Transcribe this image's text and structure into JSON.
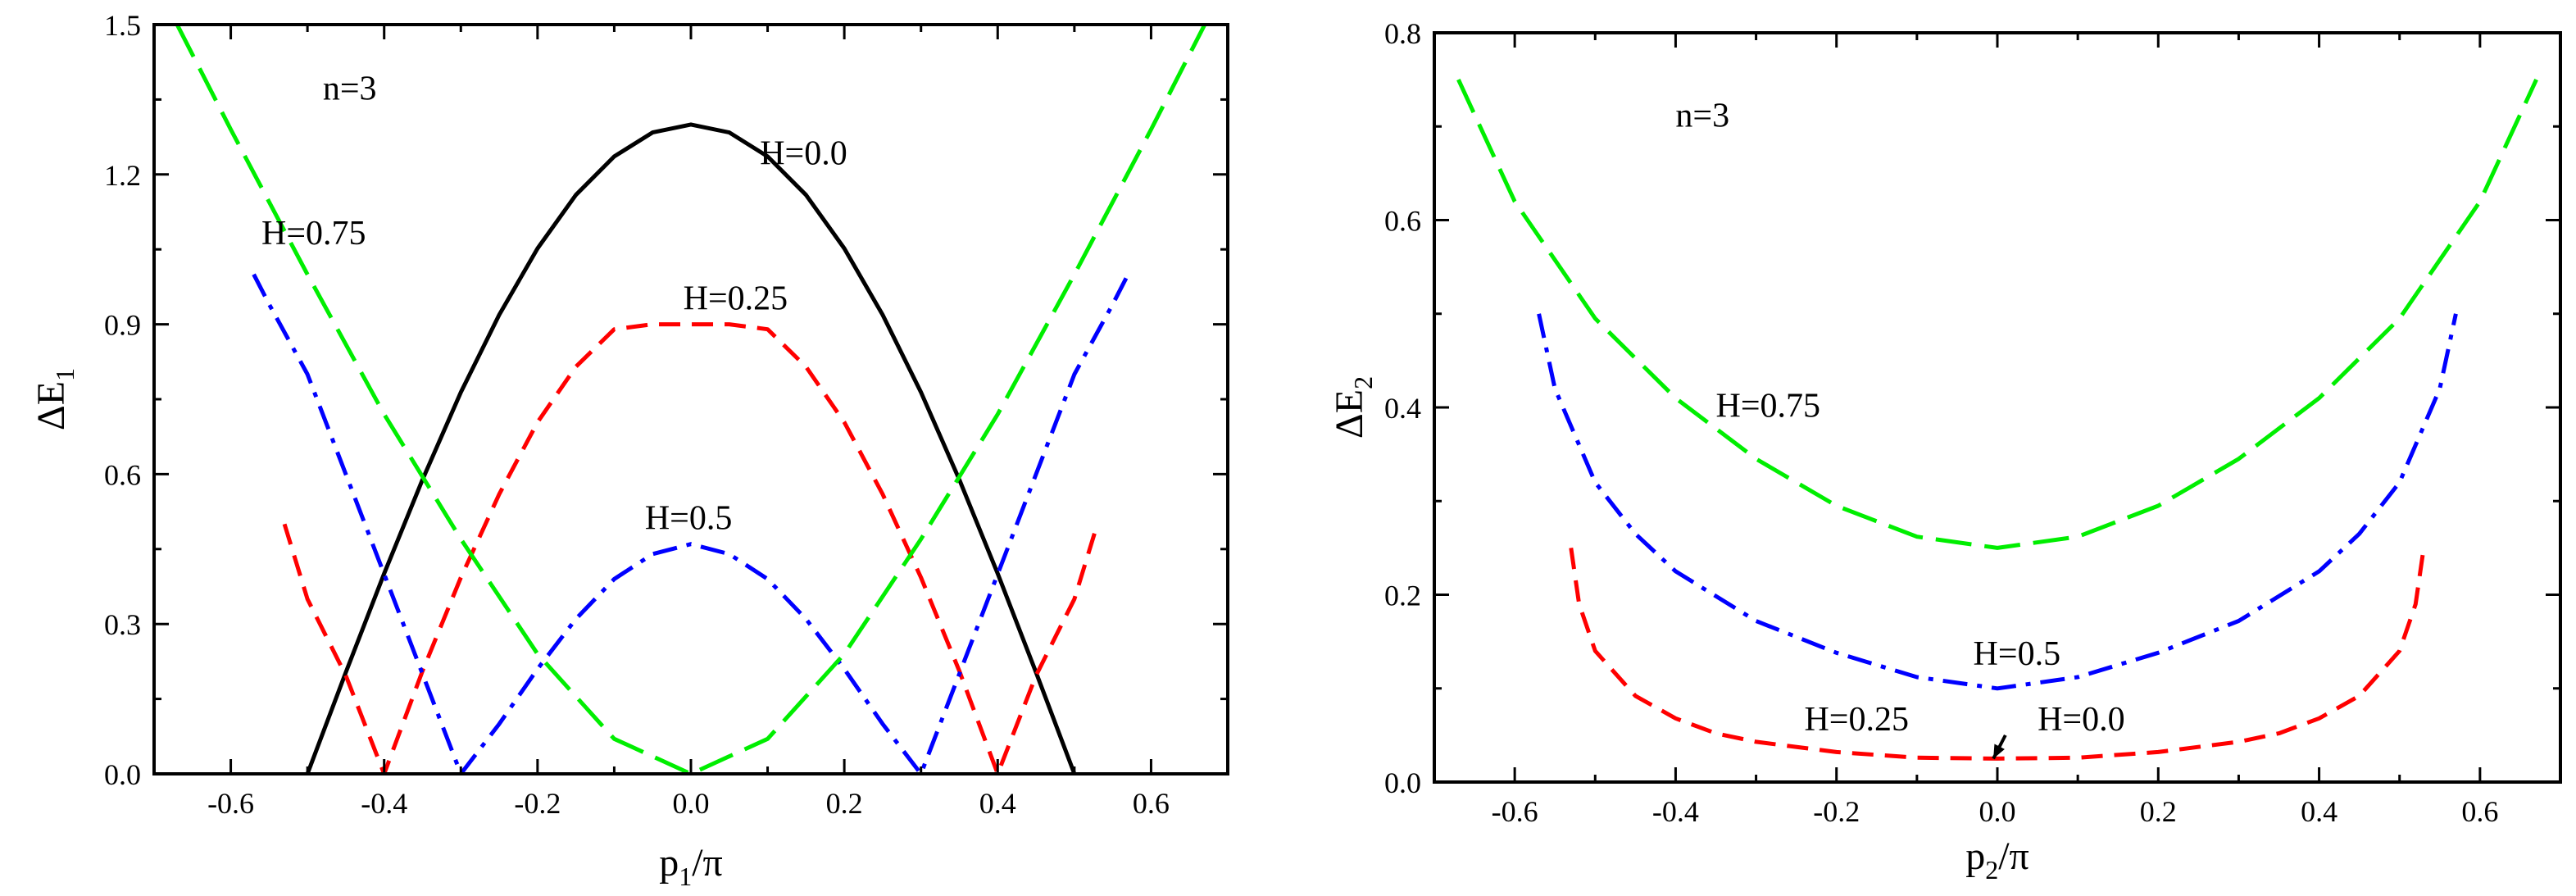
{
  "chart_data": [
    {
      "type": "line",
      "xlabel": {
        "main": "p",
        "sub": "1",
        "tail": "/π"
      },
      "ylabel": {
        "main": "ΔE",
        "sub": "1"
      },
      "xlim": [
        -0.7,
        0.7
      ],
      "ylim": [
        0,
        1.5
      ],
      "xticks": [
        -0.6,
        -0.4,
        -0.2,
        0.0,
        0.2,
        0.4,
        0.6
      ],
      "xtick_labels": [
        "-0.6",
        "-0.4",
        "-0.2",
        "0.0",
        "0.2",
        "0.4",
        "0.6"
      ],
      "yticks": [
        0.0,
        0.3,
        0.6,
        0.9,
        1.2,
        1.5
      ],
      "ytick_labels": [
        "0.0",
        "0.3",
        "0.6",
        "0.9",
        "1.2",
        "1.5"
      ],
      "annotations": [
        {
          "text": "n=3",
          "x": -0.48,
          "y": 1.35
        },
        {
          "text": "H=0.0",
          "x": 0.09,
          "y": 1.22
        },
        {
          "text": "H=0.25",
          "x": -0.01,
          "y": 0.93
        },
        {
          "text": "H=0.5",
          "x": -0.06,
          "y": 0.49
        },
        {
          "text": "H=0.75",
          "x": -0.56,
          "y": 1.06
        }
      ],
      "series": [
        {
          "name": "H=0.0",
          "color": "#000000",
          "dash": "solid",
          "x": [
            -0.5,
            -0.45,
            -0.4,
            -0.35,
            -0.3,
            -0.25,
            -0.2,
            -0.15,
            -0.1,
            -0.05,
            0.0,
            0.05,
            0.1,
            0.15,
            0.2,
            0.25,
            0.3,
            0.35,
            0.4,
            0.45,
            0.5
          ],
          "y": [
            0.0,
            0.203,
            0.401,
            0.589,
            0.764,
            0.919,
            1.052,
            1.159,
            1.236,
            1.284,
            1.3,
            1.284,
            1.236,
            1.159,
            1.052,
            0.919,
            0.764,
            0.589,
            0.401,
            0.203,
            0.0
          ]
        },
        {
          "name": "H=0.25",
          "color": "#ff0000",
          "dash": "dashed",
          "x": [
            -0.53,
            -0.5,
            -0.45,
            -0.4,
            -0.35,
            -0.3,
            -0.25,
            -0.2,
            -0.15,
            -0.1,
            -0.05,
            0.0,
            0.05,
            0.1,
            0.15,
            0.2,
            0.25,
            0.3,
            0.35,
            0.4,
            0.45,
            0.5,
            0.53
          ],
          "y": [
            0.5,
            0.35,
            0.197,
            0.0,
            0.206,
            0.393,
            0.56,
            0.704,
            0.815,
            0.89,
            0.9,
            0.9,
            0.9,
            0.89,
            0.815,
            0.704,
            0.56,
            0.393,
            0.206,
            0.0,
            0.197,
            0.35,
            0.5
          ]
        },
        {
          "name": "H=0.5",
          "color": "#0000ff",
          "dash": "dashdot",
          "x": [
            -0.57,
            -0.55,
            -0.5,
            -0.45,
            -0.4,
            -0.35,
            -0.3,
            -0.25,
            -0.2,
            -0.15,
            -0.1,
            -0.05,
            0.0,
            0.05,
            0.1,
            0.15,
            0.2,
            0.25,
            0.3,
            0.35,
            0.4,
            0.45,
            0.5,
            0.55,
            0.57
          ],
          "y": [
            1.0,
            0.94,
            0.8,
            0.6,
            0.4,
            0.2,
            0.0,
            0.1,
            0.21,
            0.31,
            0.39,
            0.44,
            0.46,
            0.44,
            0.39,
            0.31,
            0.21,
            0.1,
            0.0,
            0.2,
            0.4,
            0.6,
            0.8,
            0.94,
            1.0
          ]
        },
        {
          "name": "H=0.75",
          "color": "#00ee00",
          "dash": "longdash",
          "x": [
            -0.67,
            -0.6,
            -0.5,
            -0.4,
            -0.3,
            -0.2,
            -0.1,
            0.0,
            0.1,
            0.2,
            0.3,
            0.4,
            0.5,
            0.6,
            0.67
          ],
          "y": [
            1.5,
            1.29,
            1.0,
            0.72,
            0.47,
            0.24,
            0.07,
            0.0,
            0.07,
            0.24,
            0.47,
            0.72,
            1.0,
            1.29,
            1.5
          ]
        }
      ]
    },
    {
      "type": "line",
      "xlabel": {
        "main": "p",
        "sub": "2",
        "tail": "/π"
      },
      "ylabel": {
        "main": "ΔE",
        "sub": "2"
      },
      "xlim": [
        -0.7,
        0.7
      ],
      "ylim": [
        0,
        0.8
      ],
      "xticks": [
        -0.6,
        -0.4,
        -0.2,
        0.0,
        0.2,
        0.4,
        0.6
      ],
      "xtick_labels": [
        "-0.6",
        "-0.4",
        "-0.2",
        "0.0",
        "0.2",
        "0.4",
        "0.6"
      ],
      "yticks": [
        0.0,
        0.2,
        0.4,
        0.6,
        0.8
      ],
      "ytick_labels": [
        "0.0",
        "0.2",
        "0.4",
        "0.6",
        "0.8"
      ],
      "annotations": [
        {
          "text": "n=3",
          "x": -0.4,
          "y": 0.7
        },
        {
          "text": "H=0.75",
          "x": -0.35,
          "y": 0.39
        },
        {
          "text": "H=0.5",
          "x": -0.03,
          "y": 0.125
        },
        {
          "text": "H=0.25",
          "x": -0.24,
          "y": 0.055
        },
        {
          "text": "H=0.0",
          "x": 0.05,
          "y": 0.055
        }
      ],
      "arrow": {
        "from": [
          0.01,
          0.05
        ],
        "to": [
          -0.005,
          0.025
        ]
      },
      "series": [
        {
          "name": "H=0.0",
          "color": "#ff0000",
          "dash": "dashed",
          "x": [
            -0.53,
            -0.52,
            -0.5,
            -0.45,
            -0.4,
            -0.35,
            -0.3,
            -0.2,
            -0.1,
            0.0,
            0.1,
            0.2,
            0.3,
            0.35,
            0.4,
            0.45,
            0.5,
            0.52,
            0.53
          ],
          "y": [
            0.25,
            0.19,
            0.14,
            0.092,
            0.068,
            0.052,
            0.043,
            0.032,
            0.026,
            0.025,
            0.026,
            0.032,
            0.043,
            0.052,
            0.068,
            0.092,
            0.14,
            0.19,
            0.25
          ]
        },
        {
          "name": "H=0.5",
          "color": "#0000ff",
          "dash": "dashdot",
          "x": [
            -0.57,
            -0.55,
            -0.5,
            -0.45,
            -0.4,
            -0.3,
            -0.2,
            -0.1,
            0.0,
            0.1,
            0.2,
            0.3,
            0.4,
            0.45,
            0.5,
            0.55,
            0.57
          ],
          "y": [
            0.5,
            0.42,
            0.32,
            0.265,
            0.225,
            0.172,
            0.138,
            0.112,
            0.1,
            0.112,
            0.138,
            0.172,
            0.225,
            0.265,
            0.32,
            0.42,
            0.5
          ]
        },
        {
          "name": "H=0.75",
          "color": "#00ee00",
          "dash": "longdash",
          "x": [
            -0.67,
            -0.6,
            -0.5,
            -0.4,
            -0.3,
            -0.2,
            -0.1,
            0.0,
            0.1,
            0.2,
            0.3,
            0.4,
            0.5,
            0.6,
            0.67
          ],
          "y": [
            0.75,
            0.62,
            0.495,
            0.41,
            0.345,
            0.295,
            0.262,
            0.25,
            0.262,
            0.295,
            0.345,
            0.41,
            0.495,
            0.62,
            0.75
          ]
        }
      ]
    }
  ]
}
